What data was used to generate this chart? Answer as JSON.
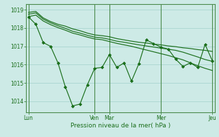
{
  "background_color": "#cdeae6",
  "grid_color": "#a8d5d0",
  "line_color": "#1a6e1a",
  "marker_color": "#1a6e1a",
  "xlabel": "Pression niveau de la mer( hPa )",
  "xlabel_color": "#1a6e1a",
  "ylim": [
    1013.4,
    1019.3
  ],
  "yticks": [
    1014,
    1015,
    1016,
    1017,
    1018,
    1019
  ],
  "xtick_labels": [
    "Lun",
    "Ven",
    "Mar",
    "Mer",
    "Jeu"
  ],
  "xtick_positions": [
    0,
    9,
    11,
    18,
    25
  ],
  "n_points": 26,
  "series1": [
    1018.6,
    1018.2,
    1017.2,
    1017.0,
    1016.1,
    1014.8,
    1013.75,
    1013.85,
    1014.9,
    1015.8,
    1015.85,
    1016.55,
    1015.85,
    1016.1,
    1015.1,
    1016.05,
    1017.35,
    1017.15,
    1016.95,
    1016.85,
    1016.3,
    1015.9,
    1016.1,
    1015.85,
    1017.1,
    1016.2
  ],
  "series2": [
    1018.85,
    1018.9,
    1018.55,
    1018.35,
    1018.2,
    1018.1,
    1017.95,
    1017.85,
    1017.72,
    1017.62,
    1017.58,
    1017.52,
    1017.42,
    1017.35,
    1017.28,
    1017.22,
    1017.18,
    1017.12,
    1017.08,
    1017.02,
    1016.98,
    1016.92,
    1016.88,
    1016.82,
    1016.78,
    1016.72
  ],
  "series3": [
    1018.75,
    1018.82,
    1018.48,
    1018.28,
    1018.12,
    1017.98,
    1017.82,
    1017.72,
    1017.6,
    1017.5,
    1017.46,
    1017.38,
    1017.28,
    1017.22,
    1017.15,
    1017.08,
    1017.02,
    1016.96,
    1016.9,
    1016.84,
    1016.78,
    1016.68,
    1016.55,
    1016.42,
    1016.28,
    1016.18
  ],
  "series4": [
    1018.62,
    1018.7,
    1018.38,
    1018.18,
    1018.02,
    1017.88,
    1017.72,
    1017.62,
    1017.5,
    1017.4,
    1017.36,
    1017.26,
    1017.16,
    1017.08,
    1017.0,
    1016.9,
    1016.8,
    1016.7,
    1016.6,
    1016.5,
    1016.38,
    1016.26,
    1016.1,
    1015.94,
    1015.8,
    1015.68
  ]
}
